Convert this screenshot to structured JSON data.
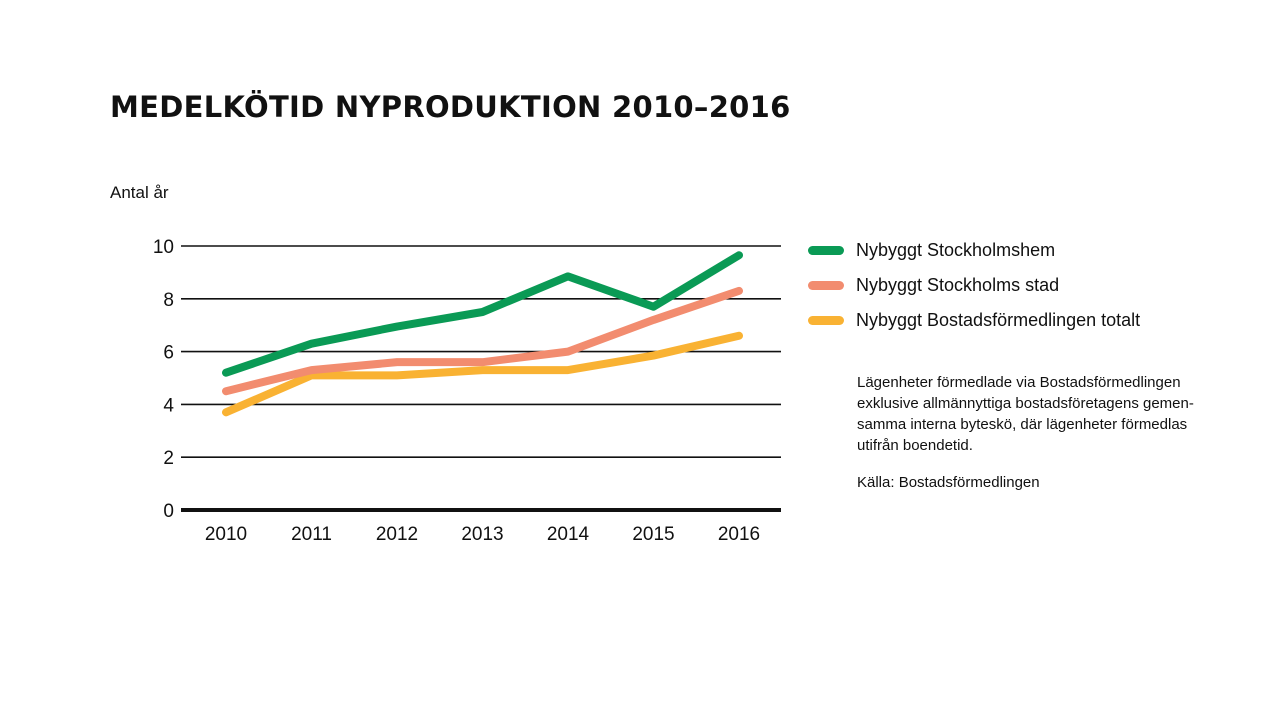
{
  "title": "MEDELKÖTID NYPRODUKTION 2010–2016",
  "ylabel": "Antal år",
  "note": {
    "lines": [
      "Lägenheter förmedlade via Bostadsförmedlingen",
      "exklusive allmännyttiga bostadsföretagens gemen-",
      "samma interna byteskö, där lägenheter förmedlas",
      "utifrån boendetid."
    ],
    "source": "Källa: Bostadsförmedlingen"
  },
  "chart_data": {
    "type": "line",
    "title": "MEDELKÖTID NYPRODUKTION 2010–2016",
    "xlabel": "",
    "ylabel": "Antal år",
    "ylim": [
      0,
      10
    ],
    "yticks": [
      "0",
      "2",
      "4",
      "6",
      "8",
      "10"
    ],
    "categories": [
      "2010",
      "2011",
      "2012",
      "2013",
      "2014",
      "2015",
      "2016"
    ],
    "grid": true,
    "legend": "right",
    "series": [
      {
        "name": "Nybyggt Stockholmshem",
        "color": "#0a9a55",
        "values": [
          5.2,
          6.3,
          6.95,
          7.5,
          8.85,
          7.7,
          9.65
        ]
      },
      {
        "name": "Nybyggt Stockholms stad",
        "color": "#f28c6f",
        "values": [
          4.5,
          5.3,
          5.6,
          5.6,
          6.0,
          7.2,
          8.3
        ]
      },
      {
        "name": "Nybyggt Bostadsförmedlingen totalt",
        "color": "#f9b233",
        "values": [
          3.7,
          5.1,
          5.1,
          5.3,
          5.3,
          5.85,
          6.6
        ]
      }
    ]
  }
}
